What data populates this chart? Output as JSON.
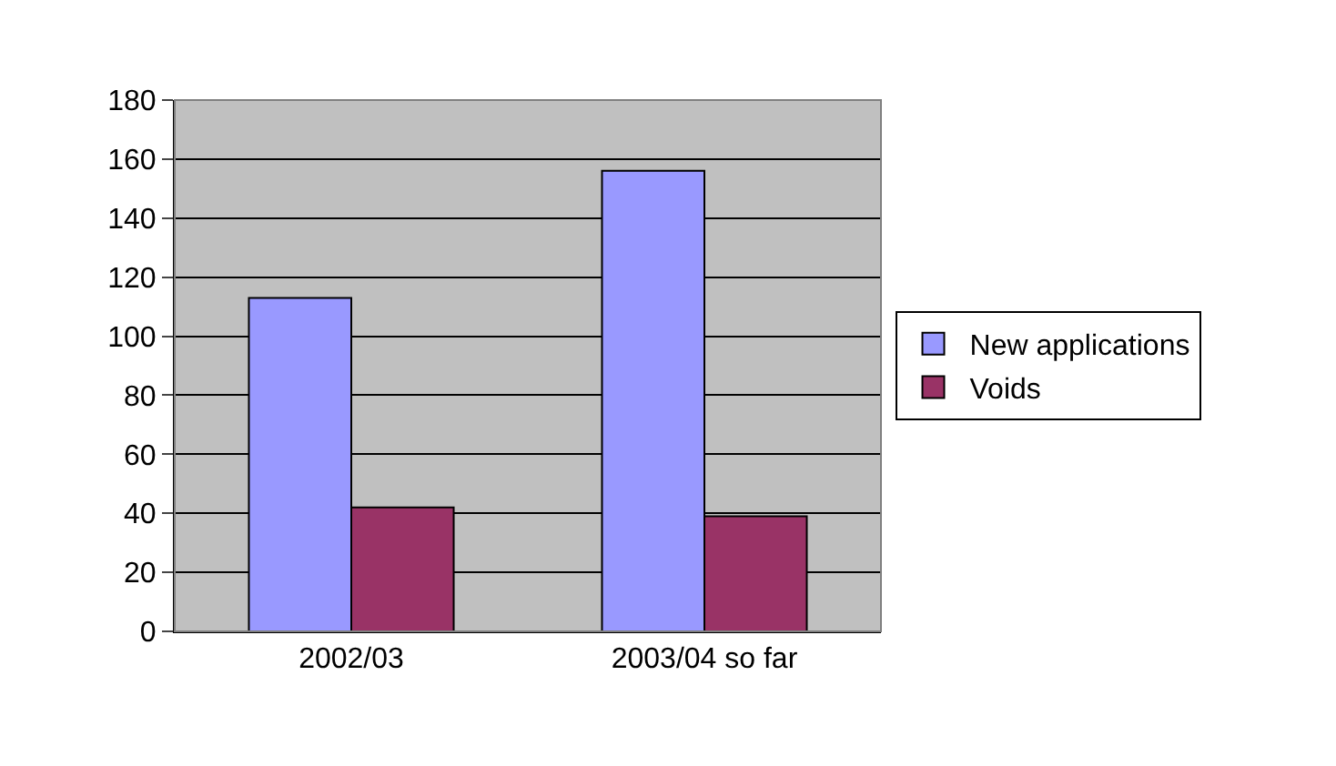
{
  "chart_data": {
    "type": "bar",
    "categories": [
      "2002/03",
      "2003/04 so far"
    ],
    "series": [
      {
        "name": "New applications",
        "color": "#9999ff",
        "values": [
          113,
          156
        ]
      },
      {
        "name": "Voids",
        "color": "#993366",
        "values": [
          42,
          39
        ]
      }
    ],
    "ylim": [
      0,
      180
    ],
    "yticks": [
      0,
      20,
      40,
      60,
      80,
      100,
      120,
      140,
      160,
      180
    ],
    "grid": "y",
    "legend": "right"
  }
}
